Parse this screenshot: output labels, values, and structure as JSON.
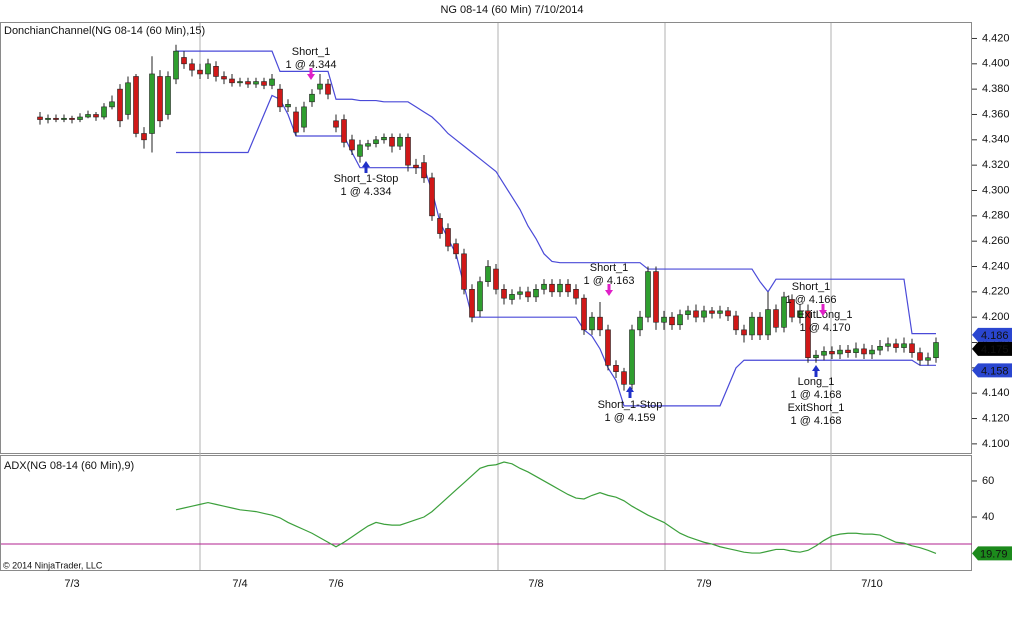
{
  "chart_data": [
    {
      "type": "candlestick",
      "title": "NG 08-14 (60 Min)  7/10/2014",
      "label": "DonchianChannel(NG 08-14 (60 Min),15)",
      "categories": [
        null,
        null,
        null,
        null,
        "7/3",
        null,
        null,
        null,
        null,
        null,
        null,
        null,
        null,
        null,
        null,
        null,
        null,
        null,
        null,
        null,
        null,
        null,
        null,
        null,
        null,
        "7/4",
        null,
        null,
        null,
        null,
        null,
        null,
        null,
        null,
        null,
        null,
        null,
        "7/6",
        null,
        null,
        null,
        null,
        null,
        null,
        null,
        null,
        null,
        null,
        null,
        null,
        null,
        null,
        null,
        null,
        null,
        null,
        null,
        null,
        null,
        null,
        null,
        null,
        "7/8",
        null,
        null,
        null,
        null,
        null,
        null,
        null,
        null,
        null,
        null,
        null,
        null,
        null,
        null,
        null,
        null,
        null,
        null,
        null,
        null,
        "7/9",
        null,
        null,
        null,
        null,
        null,
        null,
        null,
        null,
        null,
        null,
        null,
        null,
        null,
        null,
        null,
        null,
        null,
        null,
        null,
        null,
        "7/10",
        null,
        null,
        null,
        null,
        null,
        null,
        null,
        null
      ],
      "open": [
        4.358,
        4.356,
        4.357,
        4.356,
        4.357,
        4.356,
        4.358,
        4.36,
        4.358,
        4.366,
        4.38,
        4.36,
        4.39,
        4.345,
        4.345,
        4.39,
        4.36,
        4.388,
        4.405,
        4.4,
        4.395,
        4.392,
        4.398,
        4.39,
        4.388,
        4.385,
        4.386,
        4.384,
        4.386,
        4.383,
        4.38,
        4.366,
        4.362,
        4.35,
        4.37,
        4.38,
        4.384,
        4.355,
        4.356,
        4.34,
        4.327,
        4.335,
        4.337,
        4.34,
        4.342,
        4.335,
        4.342,
        4.32,
        4.322,
        4.31,
        4.278,
        4.27,
        4.258,
        4.25,
        4.222,
        4.205,
        4.228,
        4.238,
        4.222,
        4.214,
        4.218,
        4.22,
        4.216,
        4.222,
        4.226,
        4.22,
        4.226,
        4.222,
        4.215,
        4.19,
        4.2,
        4.19,
        4.162,
        4.157,
        4.147,
        4.19,
        4.2,
        4.236,
        4.196,
        4.2,
        4.194,
        4.202,
        4.205,
        4.2,
        4.205,
        4.203,
        4.205,
        4.201,
        4.19,
        4.186,
        4.2,
        4.186,
        4.206,
        4.192,
        4.214,
        4.2,
        4.205,
        4.168,
        4.17,
        4.173,
        4.171,
        4.174,
        4.172,
        4.175,
        4.171,
        4.174,
        4.177,
        4.179,
        4.176,
        4.179,
        4.172,
        4.166,
        4.168
      ],
      "high": [
        4.362,
        4.36,
        4.36,
        4.36,
        4.359,
        4.361,
        4.363,
        4.362,
        4.369,
        4.375,
        4.384,
        4.39,
        4.392,
        4.35,
        4.406,
        4.395,
        4.394,
        4.415,
        4.41,
        4.404,
        4.4,
        4.404,
        4.402,
        4.394,
        4.392,
        4.389,
        4.389,
        4.389,
        4.389,
        4.392,
        4.384,
        4.372,
        4.366,
        4.37,
        4.38,
        4.392,
        4.388,
        4.36,
        4.36,
        4.344,
        4.34,
        4.34,
        4.343,
        4.345,
        4.345,
        4.345,
        4.345,
        4.325,
        4.328,
        4.314,
        4.282,
        4.274,
        4.262,
        4.254,
        4.226,
        4.232,
        4.245,
        4.242,
        4.226,
        4.222,
        4.224,
        4.224,
        4.226,
        4.23,
        4.23,
        4.23,
        4.23,
        4.226,
        4.218,
        4.204,
        4.212,
        4.194,
        4.166,
        4.16,
        4.194,
        4.205,
        4.24,
        4.24,
        4.205,
        4.204,
        4.206,
        4.209,
        4.21,
        4.209,
        4.208,
        4.209,
        4.208,
        4.205,
        4.194,
        4.204,
        4.204,
        4.22,
        4.21,
        4.22,
        4.218,
        4.21,
        4.21,
        4.174,
        4.177,
        4.177,
        4.178,
        4.178,
        4.18,
        4.179,
        4.178,
        4.182,
        4.184,
        4.183,
        4.184,
        4.183,
        4.176,
        4.172,
        4.184
      ],
      "low": [
        4.352,
        4.353,
        4.354,
        4.354,
        4.353,
        4.354,
        4.357,
        4.355,
        4.356,
        4.364,
        4.35,
        4.356,
        4.342,
        4.333,
        4.33,
        4.35,
        4.356,
        4.384,
        4.396,
        4.39,
        4.388,
        4.388,
        4.386,
        4.384,
        4.382,
        4.382,
        4.381,
        4.381,
        4.38,
        4.38,
        4.362,
        4.362,
        4.343,
        4.346,
        4.366,
        4.376,
        4.372,
        4.346,
        4.334,
        4.328,
        4.322,
        4.332,
        4.334,
        4.337,
        4.33,
        4.332,
        4.315,
        4.313,
        4.306,
        4.276,
        4.262,
        4.252,
        4.246,
        4.218,
        4.196,
        4.2,
        4.224,
        4.218,
        4.21,
        4.21,
        4.214,
        4.212,
        4.212,
        4.218,
        4.216,
        4.216,
        4.216,
        4.21,
        4.186,
        4.186,
        4.185,
        4.158,
        4.152,
        4.142,
        4.143,
        4.185,
        4.196,
        4.19,
        4.19,
        4.19,
        4.19,
        4.198,
        4.196,
        4.196,
        4.199,
        4.199,
        4.197,
        4.186,
        4.18,
        4.182,
        4.182,
        4.182,
        4.188,
        4.188,
        4.196,
        4.195,
        4.164,
        4.164,
        4.166,
        4.167,
        4.167,
        4.168,
        4.168,
        4.167,
        4.167,
        4.17,
        4.173,
        4.172,
        4.172,
        4.168,
        4.162,
        4.162,
        4.164
      ],
      "close": [
        4.356,
        4.357,
        4.356,
        4.357,
        4.356,
        4.358,
        4.36,
        4.358,
        4.366,
        4.37,
        4.355,
        4.385,
        4.345,
        4.34,
        4.392,
        4.355,
        4.39,
        4.41,
        4.4,
        4.395,
        4.392,
        4.4,
        4.39,
        4.388,
        4.385,
        4.386,
        4.384,
        4.386,
        4.383,
        4.388,
        4.366,
        4.368,
        4.346,
        4.366,
        4.376,
        4.384,
        4.376,
        4.35,
        4.338,
        4.332,
        4.336,
        4.337,
        4.34,
        4.342,
        4.335,
        4.342,
        4.32,
        4.318,
        4.31,
        4.28,
        4.266,
        4.256,
        4.25,
        4.222,
        4.2,
        4.228,
        4.24,
        4.222,
        4.215,
        4.218,
        4.22,
        4.216,
        4.222,
        4.226,
        4.22,
        4.226,
        4.22,
        4.215,
        4.19,
        4.2,
        4.19,
        4.162,
        4.157,
        4.147,
        4.19,
        4.2,
        4.236,
        4.196,
        4.2,
        4.194,
        4.202,
        4.205,
        4.2,
        4.205,
        4.203,
        4.205,
        4.201,
        4.19,
        4.186,
        4.2,
        4.186,
        4.206,
        4.192,
        4.216,
        4.2,
        4.205,
        4.168,
        4.17,
        4.173,
        4.171,
        4.174,
        4.172,
        4.175,
        4.171,
        4.174,
        4.177,
        4.179,
        4.176,
        4.179,
        4.172,
        4.166,
        4.168,
        4.18
      ],
      "up_color": "#2f9e2f",
      "down_color": "#d01818",
      "series": [
        {
          "color": "#4a4ad8",
          "values": [
            null,
            null,
            null,
            null,
            null,
            null,
            null,
            null,
            null,
            null,
            null,
            null,
            null,
            null,
            null,
            null,
            null,
            4.41,
            4.41,
            4.41,
            4.41,
            4.41,
            4.41,
            4.41,
            4.41,
            4.41,
            4.41,
            4.41,
            4.41,
            4.41,
            4.394,
            4.394,
            4.394,
            4.394,
            4.394,
            4.394,
            4.394,
            4.372,
            4.372,
            4.372,
            4.371,
            4.371,
            4.371,
            4.37,
            4.37,
            4.37,
            4.37,
            4.366,
            4.362,
            4.358,
            4.352,
            4.345,
            4.34,
            4.335,
            4.33,
            4.325,
            4.32,
            4.315,
            4.305,
            4.295,
            4.285,
            4.272,
            4.262,
            4.25,
            4.244,
            4.243,
            4.243,
            4.243,
            4.243,
            4.243,
            4.243,
            4.243,
            4.243,
            4.243,
            4.243,
            4.243,
            4.238,
            4.238,
            4.238,
            4.238,
            4.238,
            4.238,
            4.238,
            4.238,
            4.238,
            4.238,
            4.238,
            4.238,
            4.238,
            4.238,
            4.228,
            4.22,
            4.23,
            4.23,
            4.23,
            4.23,
            4.23,
            4.23,
            4.23,
            4.23,
            4.23,
            4.23,
            4.23,
            4.23,
            4.23,
            4.23,
            4.23,
            4.23,
            4.23,
            4.187,
            4.187,
            4.187,
            4.187
          ]
        },
        {
          "color": "#4a4ad8",
          "values": [
            null,
            null,
            null,
            null,
            null,
            null,
            null,
            null,
            null,
            null,
            null,
            null,
            null,
            null,
            null,
            null,
            null,
            4.33,
            4.33,
            4.33,
            4.33,
            4.33,
            4.33,
            4.33,
            4.33,
            4.33,
            4.33,
            4.345,
            4.36,
            4.375,
            4.372,
            4.36,
            4.343,
            4.343,
            4.343,
            4.343,
            4.343,
            4.343,
            4.343,
            4.33,
            4.318,
            4.318,
            4.318,
            4.318,
            4.318,
            4.318,
            4.318,
            4.318,
            4.318,
            4.3,
            4.275,
            4.262,
            4.25,
            4.225,
            4.2,
            4.2,
            4.2,
            4.2,
            4.2,
            4.2,
            4.2,
            4.2,
            4.2,
            4.2,
            4.2,
            4.2,
            4.2,
            4.2,
            4.19,
            4.185,
            4.175,
            4.16,
            4.15,
            4.13,
            4.13,
            4.13,
            4.13,
            4.13,
            4.13,
            4.13,
            4.13,
            4.13,
            4.13,
            4.13,
            4.13,
            4.13,
            4.145,
            4.16,
            4.166,
            4.166,
            4.166,
            4.166,
            4.166,
            4.166,
            4.166,
            4.166,
            4.166,
            4.166,
            4.166,
            4.166,
            4.166,
            4.166,
            4.166,
            4.166,
            4.166,
            4.166,
            4.166,
            4.166,
            4.166,
            4.166,
            4.162,
            4.162,
            4.162
          ]
        }
      ],
      "ylim": [
        4.092,
        4.433
      ],
      "yticks": [
        {
          "value": 4.1,
          "label": "4.100"
        },
        {
          "value": 4.12,
          "label": "4.120"
        },
        {
          "value": 4.14,
          "label": "4.140"
        },
        {
          "value": 4.16,
          "label": "4.160"
        },
        {
          "value": 4.18,
          "label": "4.180"
        },
        {
          "value": 4.2,
          "label": "4.200"
        },
        {
          "value": 4.22,
          "label": "4.220"
        },
        {
          "value": 4.24,
          "label": "4.240"
        },
        {
          "value": 4.26,
          "label": "4.260"
        },
        {
          "value": 4.28,
          "label": "4.280"
        },
        {
          "value": 4.3,
          "label": "4.300"
        },
        {
          "value": 4.32,
          "label": "4.320"
        },
        {
          "value": 4.34,
          "label": "4.340"
        },
        {
          "value": 4.36,
          "label": "4.360"
        },
        {
          "value": 4.38,
          "label": "4.380"
        },
        {
          "value": 4.4,
          "label": "4.400"
        },
        {
          "value": 4.42,
          "label": "4.420"
        }
      ],
      "price_markers": [
        {
          "value": 4.186,
          "color": "#2a46d0"
        },
        {
          "value": 4.175,
          "color": "#000000"
        },
        {
          "value": 4.158,
          "color": "#2a46d0"
        }
      ],
      "annotations": [
        {
          "lines": [
            "Short_1",
            "1 @ 4.344"
          ]
        },
        {
          "lines": [
            "Short_1-Stop",
            "1 @ 4.334"
          ]
        },
        {
          "lines": [
            "Short_1",
            "1 @ 4.163"
          ]
        },
        {
          "lines": [
            "Short_1-Stop",
            "1 @ 4.159"
          ]
        },
        {
          "lines": [
            "Short_1",
            "1 @ 4.166"
          ]
        },
        {
          "lines": [
            "ExitLong_1",
            "1 @ 4.170"
          ]
        },
        {
          "lines": [
            "Long_1",
            "1 @ 4.168"
          ]
        },
        {
          "lines": [
            "ExitShort_1",
            "1 @ 4.168"
          ]
        }
      ]
    },
    {
      "type": "line",
      "label": "ADX(NG 08-14 (60 Min),9)",
      "credit": "© 2014 NinjaTrader, LLC",
      "series": [
        {
          "color": "#3ca03c",
          "marker_color": "#1c8a1c",
          "values": [
            null,
            null,
            null,
            null,
            null,
            null,
            null,
            null,
            null,
            null,
            null,
            null,
            null,
            null,
            null,
            null,
            null,
            44,
            45,
            46,
            47,
            48,
            47,
            46,
            45,
            44,
            43.5,
            43,
            42,
            41,
            39.5,
            37,
            35,
            33,
            31,
            28.5,
            26,
            23.5,
            26,
            29,
            32,
            35,
            37,
            36,
            35.5,
            35.5,
            37,
            38.5,
            40,
            43,
            47,
            51,
            55,
            59,
            63,
            67,
            68.5,
            69,
            70.5,
            69.5,
            67,
            65,
            62.5,
            60,
            57.5,
            55,
            52.5,
            50.5,
            50,
            52,
            53.5,
            52,
            51,
            49,
            46,
            43.5,
            41,
            39,
            37,
            34,
            31,
            29,
            27.5,
            26,
            25,
            23.5,
            22.5,
            21.5,
            20.5,
            20,
            20,
            21,
            22,
            22,
            21,
            20.5,
            21.5,
            24,
            27,
            29.5,
            30.5,
            31,
            31,
            30.5,
            30.5,
            30,
            28,
            26,
            25.5,
            24,
            23,
            21.5,
            19.79
          ]
        }
      ],
      "reference": {
        "value": 25,
        "color": "#b0208f"
      },
      "ylim": [
        10.6,
        74.4
      ],
      "yticks": [
        40,
        60
      ]
    }
  ]
}
